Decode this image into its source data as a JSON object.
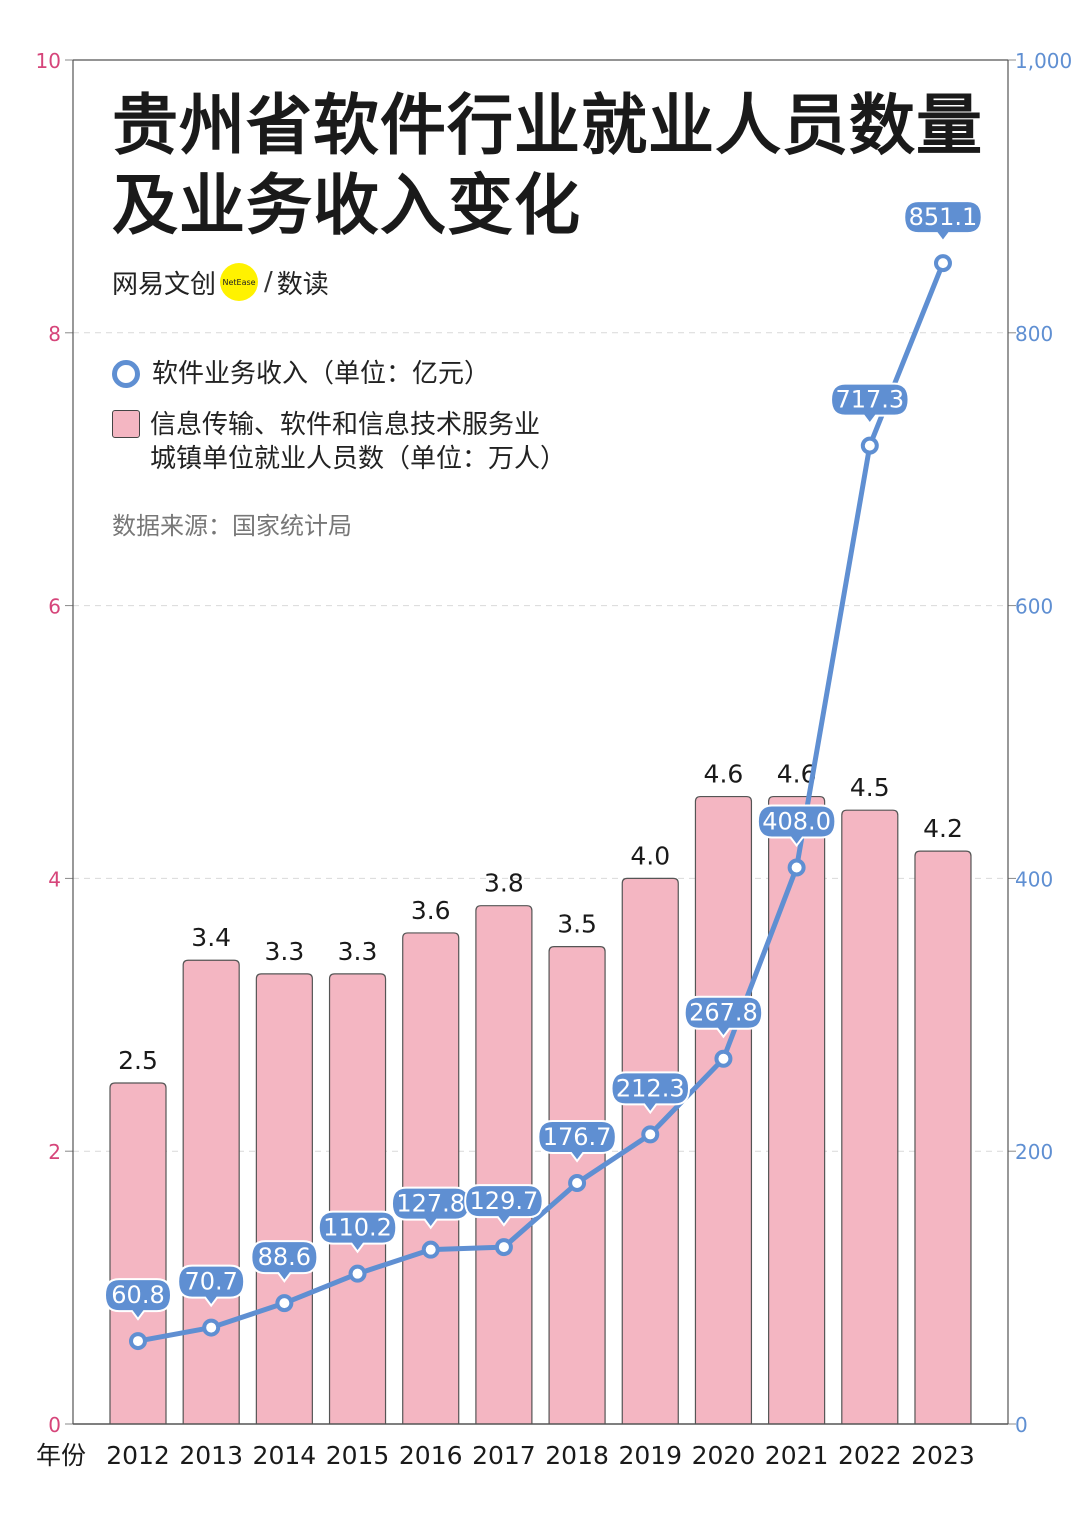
{
  "title_line1": "贵州省软件行业就业人员数量",
  "title_line2": "及业务收入变化",
  "brand": {
    "name": "网易文创",
    "logo_text": "NetEase",
    "separator": "/",
    "sub": "数读"
  },
  "legend": {
    "line_label": "软件业务收入（单位：亿元）",
    "bar_label_line1": "信息传输、软件和信息技术服务业",
    "bar_label_line2": "城镇单位就业人员数（单位：万人）"
  },
  "source": "数据来源：国家统计局",
  "colors": {
    "bar_fill": "#f4b6c2",
    "bar_stroke": "#555555",
    "line": "#5f8fd2",
    "left_axis": "#d6457a",
    "right_axis": "#5f8fd2"
  },
  "chart_data": {
    "type": "bar",
    "x_axis_label": "年份",
    "categories": [
      "2012",
      "2013",
      "2014",
      "2015",
      "2016",
      "2017",
      "2018",
      "2019",
      "2020",
      "2021",
      "2022",
      "2023"
    ],
    "series": [
      {
        "type": "bar",
        "axis": "left",
        "values": [
          2.5,
          3.4,
          3.3,
          3.3,
          3.6,
          3.8,
          3.5,
          4.0,
          4.6,
          4.6,
          4.5,
          4.2
        ],
        "labels": [
          "2.5",
          "3.4",
          "3.3",
          "3.3",
          "3.6",
          "3.8",
          "3.5",
          "4.0",
          "4.6",
          "4.6",
          "4.5",
          "4.2"
        ]
      },
      {
        "type": "line",
        "axis": "right",
        "values": [
          60.8,
          70.7,
          88.6,
          110.2,
          127.8,
          129.7,
          176.7,
          212.3,
          267.8,
          408.0,
          717.3,
          851.1
        ],
        "labels": [
          "60.8",
          "70.7",
          "88.6",
          "110.2",
          "127.8",
          "129.7",
          "176.7",
          "212.3",
          "267.8",
          "408.0",
          "717.3",
          "851.1"
        ]
      }
    ],
    "left_axis": {
      "ylim": [
        0,
        10
      ],
      "ticks": [
        "0",
        "2",
        "4",
        "6",
        "8",
        "10"
      ]
    },
    "right_axis": {
      "ylim": [
        0,
        1000
      ],
      "ticks": [
        "0",
        "200",
        "400",
        "600",
        "800",
        "1,000"
      ]
    },
    "grid": true
  }
}
